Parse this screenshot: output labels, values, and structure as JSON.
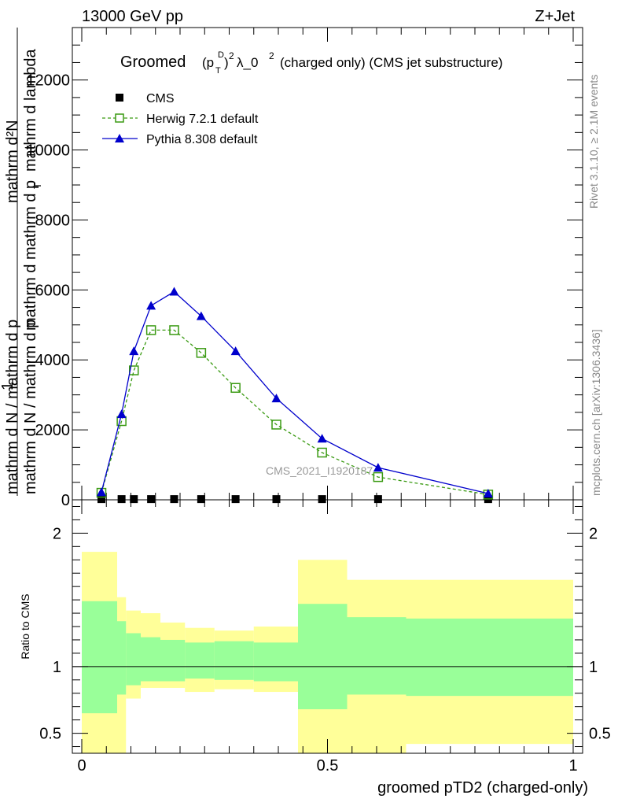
{
  "header": {
    "energy_label": "13000 GeV pp",
    "process_label": "Z+Jet"
  },
  "side_text": {
    "rivet": "Rivet 3.1.10, ≥ 2.1M events",
    "mcplots": "mcplots.cern.ch [arXiv:1306.3436]"
  },
  "chart_data": [
    {
      "type": "line",
      "title": "Groomed (p_T^D)^2 λ_0^2  (charged only) (CMS jet substructure)",
      "title_parts": {
        "prefix": "Groomed",
        "paren_open": "(p",
        "sub": "T",
        "sup_d": "D",
        "paren_close": ")",
        "sup_2": "2",
        "lambda": "λ_0",
        "sup_2b": "2",
        "suffix": "(charged only) (CMS jet substructure)"
      },
      "ylabel_lines": [
        "mathrm d²N",
        "mathrm d p_T mathrm d lambda",
        "1",
        "mathrm d N / mathrm d p_T mathrm d",
        "mathrm d N / mathrm d p_T"
      ],
      "ylabel": {
        "top_num": "mathrm d²N",
        "top_den": "mathrm d p",
        "top_den_sub": "T",
        "top_den_rest": "mathrm d lambda",
        "one": "1",
        "bottom_line1": "mathrm d N / mathrm d p",
        "bottom_line1_sub": "T",
        "bottom_line1_rest": "mathrm d",
        "bottom_line2": "mathrm d N / mathrm d p",
        "bottom_line2_sub": "T"
      },
      "ylim": [
        0,
        13500
      ],
      "xlim": [
        -0.01,
        1.0
      ],
      "yticks": [
        0,
        2000,
        4000,
        6000,
        8000,
        10000,
        12000
      ],
      "ytick_labels": [
        "0",
        "2000",
        "4000",
        "6000",
        "8000",
        "10000",
        "12000"
      ],
      "watermark": "CMS_2021_I1920187",
      "legend_position": "top-left",
      "series": [
        {
          "name": "CMS",
          "color": "#000000",
          "marker": "filled-square",
          "x": [
            0.04,
            0.081,
            0.106,
            0.141,
            0.188,
            0.243,
            0.313,
            0.396,
            0.489,
            0.603,
            0.827
          ],
          "y": [
            20,
            20,
            20,
            20,
            20,
            20,
            20,
            20,
            20,
            20,
            20
          ]
        },
        {
          "name": "Herwig 7.2.1 default",
          "color": "#3a9a12",
          "marker": "open-square",
          "dashed": true,
          "x": [
            0.04,
            0.081,
            0.106,
            0.141,
            0.188,
            0.243,
            0.313,
            0.396,
            0.489,
            0.603,
            0.827
          ],
          "y": [
            200,
            2250,
            3700,
            4850,
            4850,
            4200,
            3200,
            2150,
            1350,
            650,
            150
          ]
        },
        {
          "name": "Pythia 8.308 default",
          "color": "#0000cc",
          "marker": "filled-triangle",
          "dashed": false,
          "x": [
            0.04,
            0.081,
            0.106,
            0.141,
            0.188,
            0.243,
            0.313,
            0.396,
            0.489,
            0.603,
            0.827
          ],
          "y": [
            220,
            2450,
            4250,
            5550,
            5950,
            5250,
            4250,
            2900,
            1750,
            920,
            180
          ]
        }
      ]
    },
    {
      "type": "area",
      "ylabel": "Ratio to CMS",
      "xlabel": "groomed pTD2 (charged-only)",
      "xlim": [
        -0.01,
        1.0
      ],
      "ylim": [
        0.35,
        2.25
      ],
      "xticks": [
        0,
        0.5,
        1
      ],
      "xtick_labels": [
        "0",
        "0.5",
        "1"
      ],
      "yticks": [
        0.5,
        1,
        2
      ],
      "ytick_labels": [
        "0.5",
        "1",
        "2"
      ],
      "bin_edges": [
        0.0,
        0.072,
        0.09,
        0.12,
        0.16,
        0.21,
        0.27,
        0.35,
        0.44,
        0.54,
        0.66,
        1.0
      ],
      "bands": [
        {
          "name": "total uncertainty",
          "color": "#ffff99",
          "lo": [
            0.35,
            0.35,
            0.76,
            0.84,
            0.84,
            0.81,
            0.83,
            0.81,
            0.35,
            0.35,
            0.42
          ],
          "hi": [
            1.86,
            1.52,
            1.42,
            1.4,
            1.33,
            1.29,
            1.27,
            1.3,
            1.8,
            1.65,
            1.65
          ]
        },
        {
          "name": "statistical uncertainty",
          "color": "#99ff99",
          "lo": [
            0.65,
            0.79,
            0.86,
            0.89,
            0.89,
            0.91,
            0.9,
            0.89,
            0.68,
            0.79,
            0.78
          ],
          "hi": [
            1.49,
            1.34,
            1.25,
            1.22,
            1.2,
            1.18,
            1.19,
            1.18,
            1.47,
            1.37,
            1.36
          ]
        }
      ],
      "reference_line": 1
    }
  ]
}
